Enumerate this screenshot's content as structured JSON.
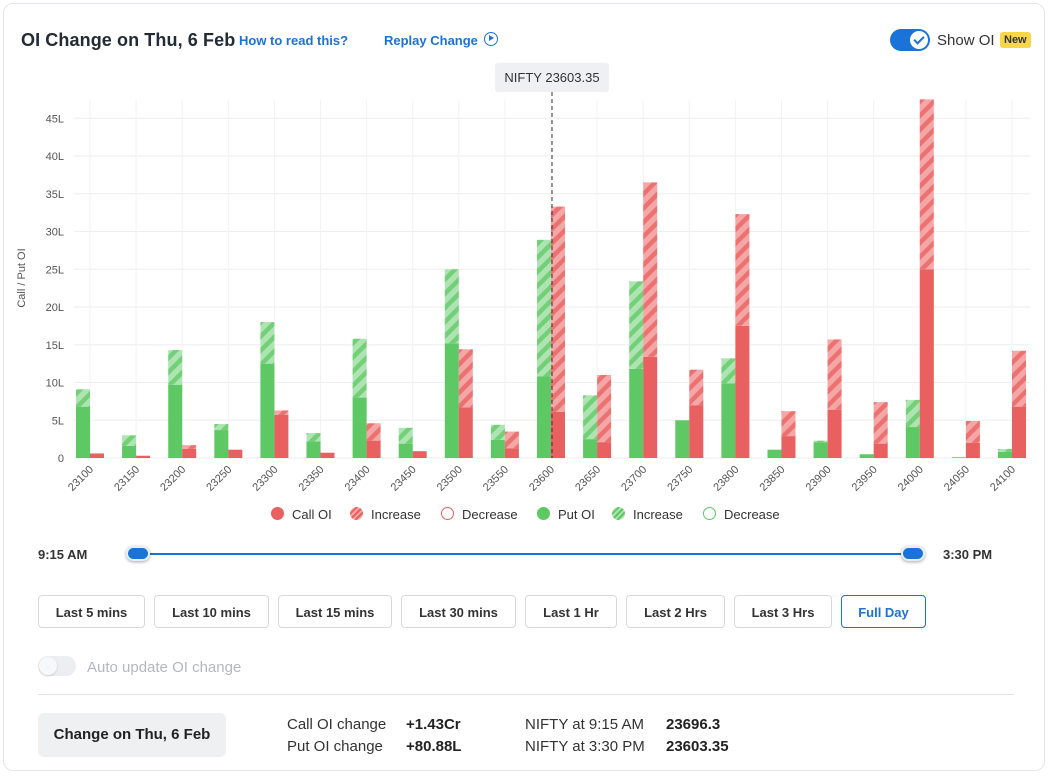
{
  "header": {
    "title": "OI Change on Thu, 6 Feb",
    "how_to_read": "How to read this?",
    "replay": "Replay Change",
    "show_oi_label": "Show OI",
    "new_badge": "New",
    "show_oi_enabled": true
  },
  "tooltip": {
    "nifty": "NIFTY 23603.35"
  },
  "chart_data": {
    "type": "bar",
    "ylabel": "Call / Put OI",
    "y_ticks": [
      "0",
      "5L",
      "10L",
      "15L",
      "20L",
      "25L",
      "30L",
      "35L",
      "40L",
      "45L"
    ],
    "ylim": [
      0,
      47
    ],
    "spot_strike": "23600",
    "categories": [
      "23100",
      "23150",
      "23200",
      "23250",
      "23300",
      "23350",
      "23400",
      "23450",
      "23500",
      "23550",
      "23600",
      "23650",
      "23700",
      "23750",
      "23800",
      "23850",
      "23900",
      "23950",
      "24000",
      "24050",
      "24100"
    ],
    "series": [
      {
        "name": "Put OI",
        "values": [
          6.8,
          1.6,
          9.7,
          3.7,
          12.5,
          2.2,
          8.0,
          1.9,
          15.2,
          2.4,
          10.8,
          2.5,
          11.8,
          5.0,
          9.9,
          1.1,
          2.1,
          0.5,
          4.1,
          0.1,
          0.8
        ]
      },
      {
        "name": "Put OI Increase",
        "values": [
          2.3,
          1.4,
          4.6,
          0.8,
          5.5,
          1.1,
          7.8,
          2.1,
          9.8,
          2.0,
          18.1,
          5.8,
          11.6,
          0,
          3.3,
          0,
          0.2,
          0,
          3.6,
          0,
          0.4
        ]
      },
      {
        "name": "Call OI",
        "values": [
          0.6,
          0.3,
          1.2,
          1.1,
          5.7,
          0.7,
          2.3,
          0.9,
          6.7,
          1.3,
          6.1,
          2.1,
          13.4,
          7.0,
          17.5,
          2.9,
          6.4,
          1.9,
          25.0,
          2.0,
          6.8
        ]
      },
      {
        "name": "Call OI Increase",
        "values": [
          0,
          0,
          0.5,
          0,
          0.6,
          0,
          2.3,
          0,
          7.7,
          2.2,
          27.2,
          8.9,
          23.1,
          4.7,
          14.8,
          3.3,
          9.3,
          5.5,
          22.5,
          2.9,
          7.4
        ]
      }
    ]
  },
  "legend": {
    "call_oi": "Call OI",
    "call_increase": "Increase",
    "call_decrease": "Decrease",
    "put_oi": "Put OI",
    "put_increase": "Increase",
    "put_decrease": "Decrease"
  },
  "colors": {
    "call": "#e8605f",
    "call_light": "#f4a7a6",
    "put": "#5ec865",
    "put_light": "#aee4b1",
    "accent": "#1a73d9"
  },
  "slider": {
    "start": "9:15 AM",
    "end": "3:30 PM",
    "range_fraction": [
      0,
      1
    ]
  },
  "buttons": [
    {
      "label": "Last 5 mins"
    },
    {
      "label": "Last 10 mins"
    },
    {
      "label": "Last 15 mins"
    },
    {
      "label": "Last 30 mins"
    },
    {
      "label": "Last 1 Hr"
    },
    {
      "label": "Last 2 Hrs"
    },
    {
      "label": "Last 3 Hrs"
    },
    {
      "label": "Full Day",
      "active": true
    }
  ],
  "auto_update": {
    "label": "Auto update OI change",
    "enabled": false
  },
  "summary": {
    "change_button": "Change on Thu, 6 Feb",
    "call_oi_change_label": "Call OI change",
    "call_oi_change_value": "+1.43Cr",
    "put_oi_change_label": "Put OI change",
    "put_oi_change_value": "+80.88L",
    "nifty_start_label": "NIFTY at 9:15 AM",
    "nifty_start_value": "23696.3",
    "nifty_end_label": "NIFTY at 3:30 PM",
    "nifty_end_value": "23603.35"
  }
}
